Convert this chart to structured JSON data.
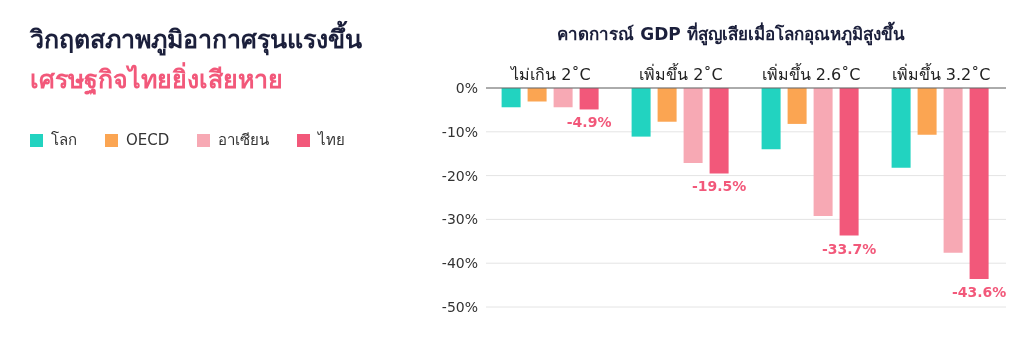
{
  "chart_data": {
    "type": "bar",
    "title": "วิกฤตสภาพภูมิอากาศรุนแรงขึ้น",
    "subtitle": "เศรษฐกิจไทยยิ่งเสียหาย",
    "annotations": [
      "คาดการณ์ GDP ที่สูญเสียเมื่อโลกอุณหภูมิสูงขึ้น"
    ],
    "categories": [
      "ไม่เกิน 2˚C",
      "เพิ่มขึ้น 2˚C",
      "เพิ่มขึ้น 2.6˚C",
      "เพิ่มขึ้น 3.2˚C"
    ],
    "series": [
      {
        "name": "โลก",
        "color": "#22d3c0",
        "values": [
          -4.4,
          -11.1,
          -14.0,
          -18.2
        ]
      },
      {
        "name": "OECD",
        "color": "#fba552",
        "values": [
          -3.1,
          -7.7,
          -8.2,
          -10.7
        ]
      },
      {
        "name": "อาเซียน",
        "color": "#f7a9b4",
        "values": [
          -4.4,
          -17.1,
          -29.2,
          -37.6
        ]
      },
      {
        "name": "ไทย",
        "color": "#f2587a",
        "values": [
          -4.9,
          -19.5,
          -33.7,
          -43.6
        ],
        "value_labels": [
          "-4.9%",
          "-19.5%",
          "-33.7%",
          "-43.6%"
        ]
      }
    ],
    "ylim": [
      -50,
      0
    ],
    "yticks": [
      {
        "value": 0,
        "label": "0%"
      },
      {
        "value": -10,
        "label": "-10%"
      },
      {
        "value": -20,
        "label": "-20%"
      },
      {
        "value": -30,
        "label": "-30%"
      },
      {
        "value": -40,
        "label": "-40%"
      },
      {
        "value": -50,
        "label": "-50%"
      }
    ],
    "grid": "y",
    "legend": "left"
  }
}
